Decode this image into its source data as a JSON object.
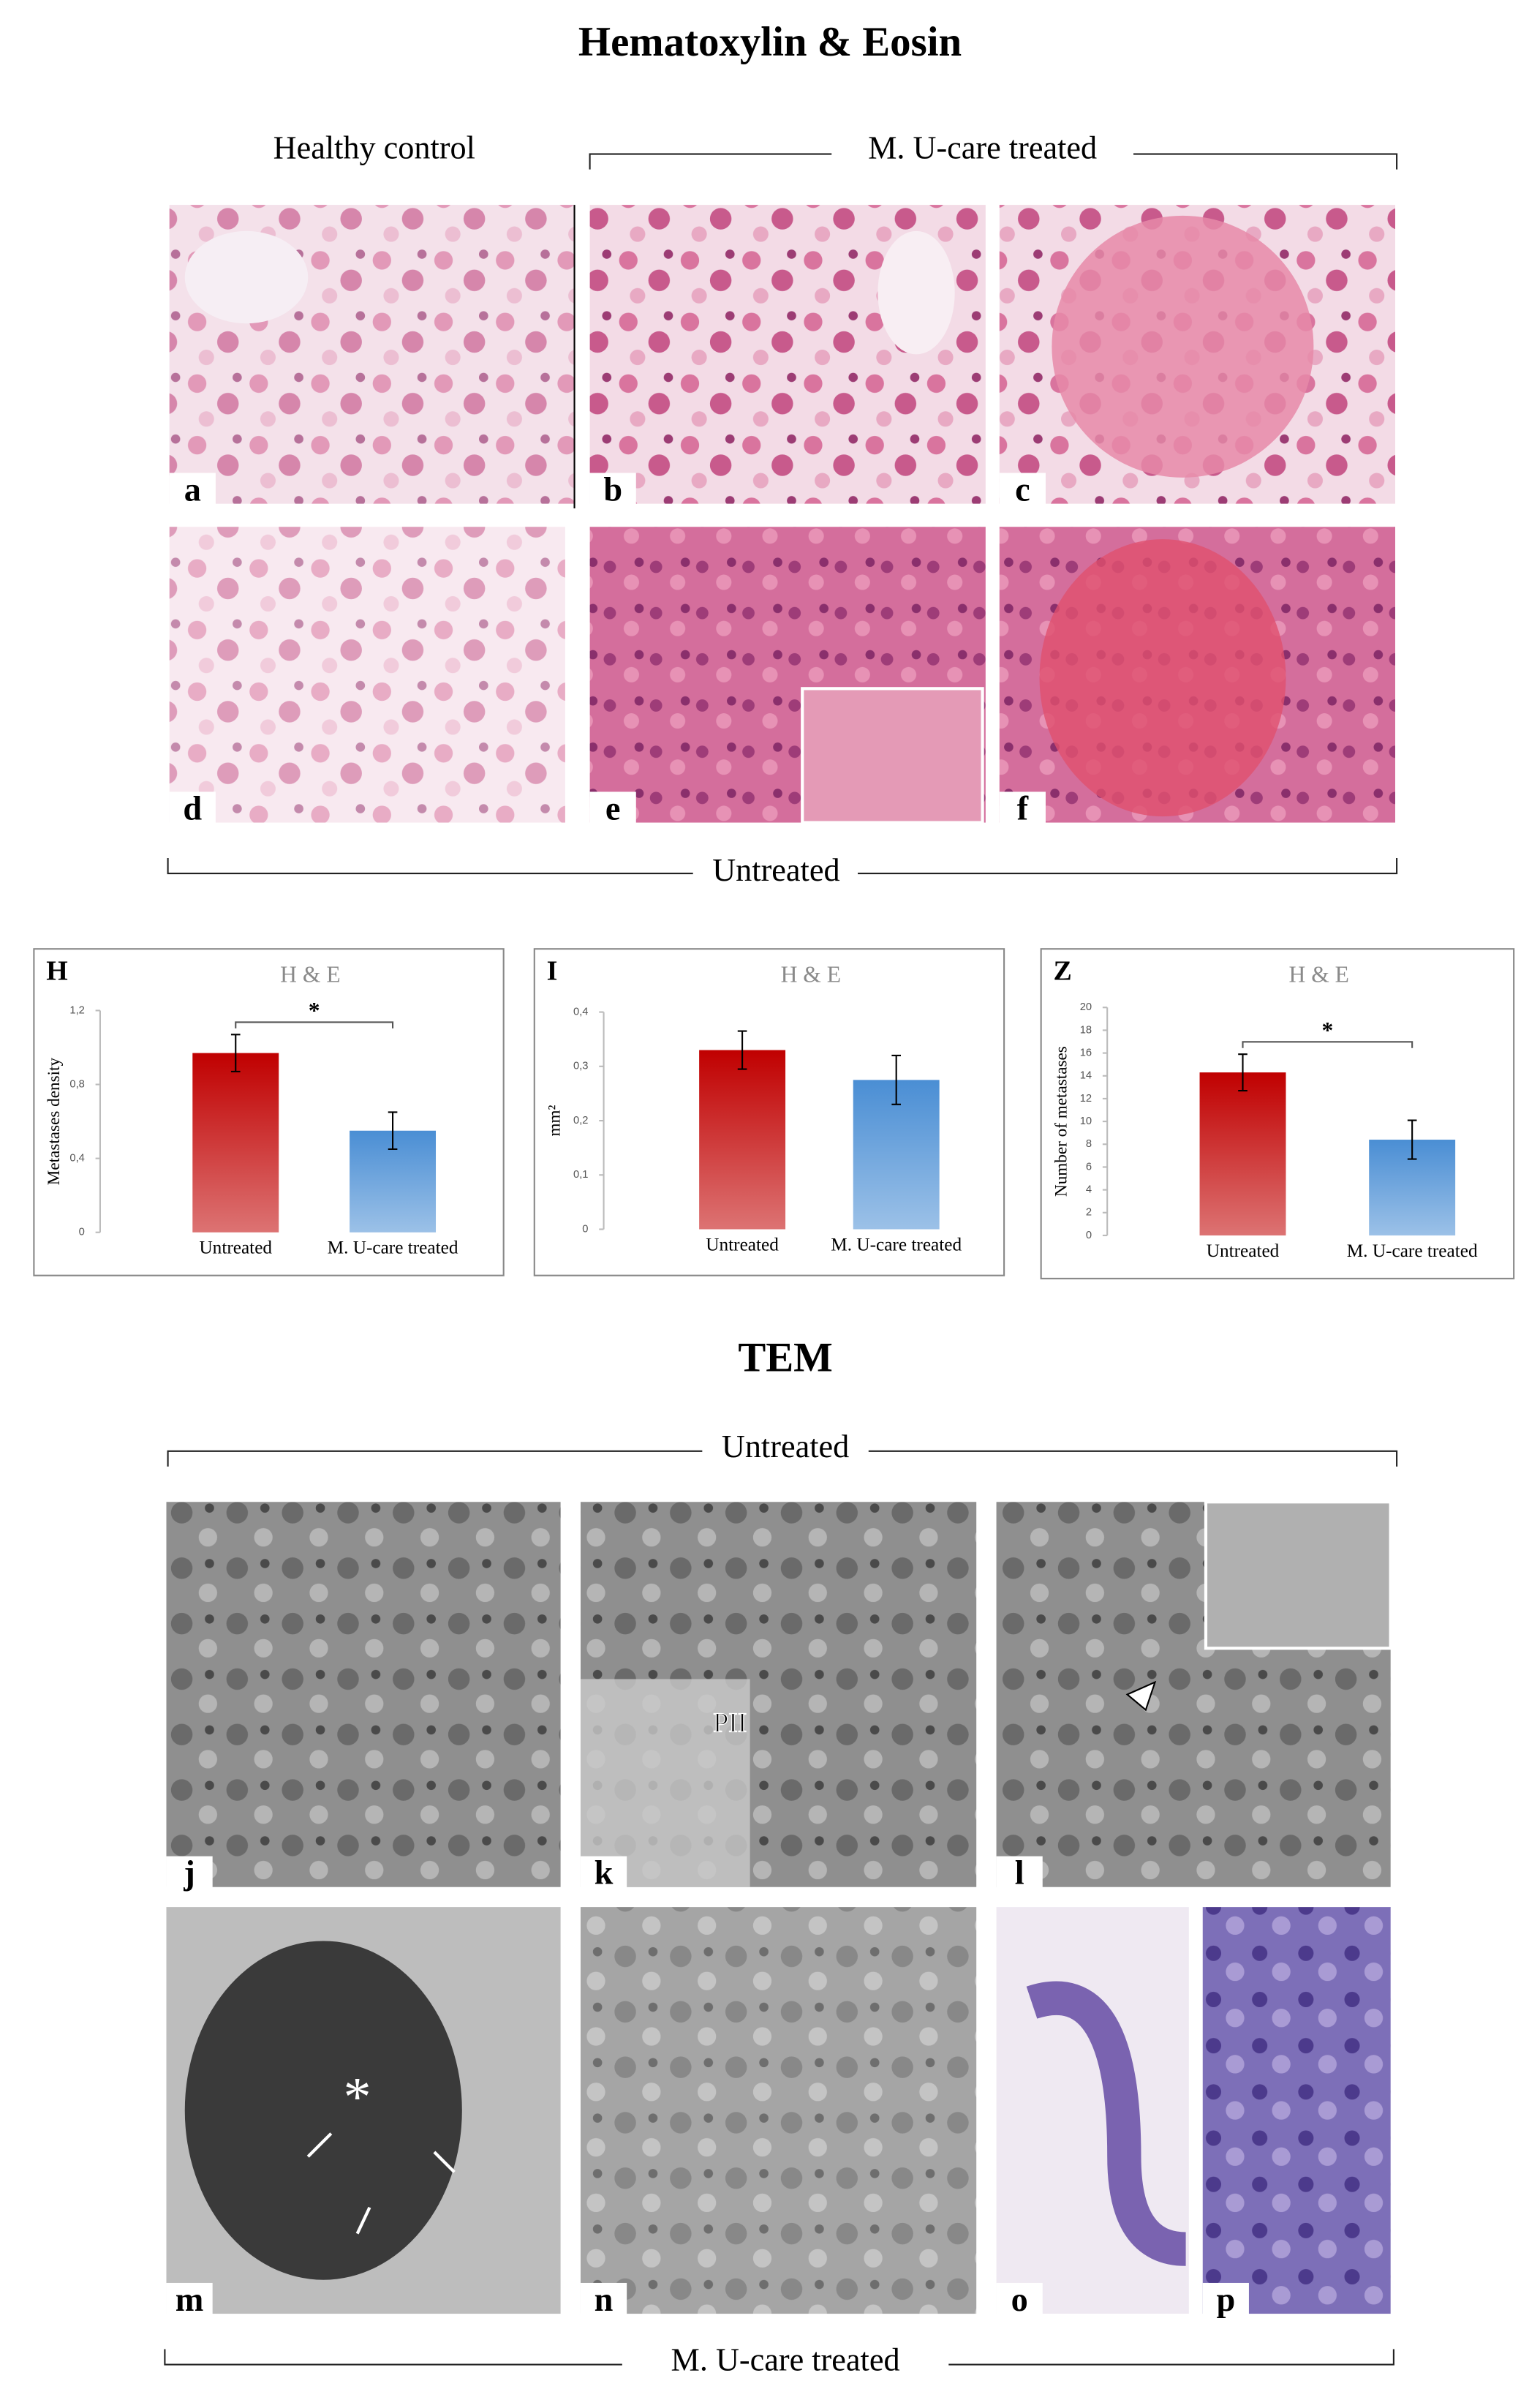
{
  "figure": {
    "title": "Hematoxylin & Eosin",
    "healthy_label": "Healthy control",
    "treated_label": "M. U-care treated",
    "untreated_label": "Untreated",
    "he_panels": [
      "a",
      "b",
      "c",
      "d",
      "e",
      "f"
    ],
    "tem_title": "TEM",
    "tem_untreated_label": "Untreated",
    "tem_treated_label": "M. U-care treated",
    "tem_panels": [
      "j",
      "k",
      "l",
      "m",
      "n",
      "o",
      "p"
    ],
    "annotations": [
      "PII",
      "*"
    ]
  },
  "chart_data": [
    {
      "type": "bar",
      "panel": "H",
      "title": "H & E",
      "y_label": "Metastases density",
      "categories": [
        "Untreated",
        "M. U-care treated"
      ],
      "values": [
        0.97,
        0.55
      ],
      "errors": [
        0.1,
        0.1
      ],
      "colors": [
        "#c00000",
        "#4a8ed4"
      ],
      "significance": "*",
      "ylim": [
        0,
        1.2
      ],
      "yticks": [
        0,
        {
          "value": 0.4,
          "label": "0,4"
        },
        {
          "value": 0.8,
          "label": "0,8"
        },
        {
          "value": 1.2,
          "label": "1,2"
        }
      ]
    },
    {
      "type": "bar",
      "panel": "I",
      "title": "H & E",
      "y_label": "mm²",
      "categories": [
        "Untreated",
        "M. U-care treated"
      ],
      "values": [
        0.33,
        0.275
      ],
      "errors": [
        0.035,
        0.045
      ],
      "colors": [
        "#c00000",
        "#4a8ed4"
      ],
      "ylim": [
        0,
        0.4
      ],
      "yticks": [
        0,
        {
          "value": 0.1,
          "label": "0,1"
        },
        {
          "value": 0.2,
          "label": "0,2"
        },
        {
          "value": 0.3,
          "label": "0,3"
        },
        {
          "value": 0.4,
          "label": "0,4"
        }
      ]
    },
    {
      "type": "bar",
      "panel": "Z",
      "title": "H & E",
      "y_label": "Number of metastases",
      "categories": [
        "Untreated",
        "M. U-care treated"
      ],
      "values": [
        14.3,
        8.4
      ],
      "errors": [
        1.6,
        1.7
      ],
      "colors": [
        "#c00000",
        "#4a8ed4"
      ],
      "significance": "*",
      "ylim": [
        0,
        20
      ],
      "yticks": [
        0,
        2,
        4,
        6,
        8,
        10,
        12,
        14,
        16,
        18,
        20
      ]
    }
  ]
}
